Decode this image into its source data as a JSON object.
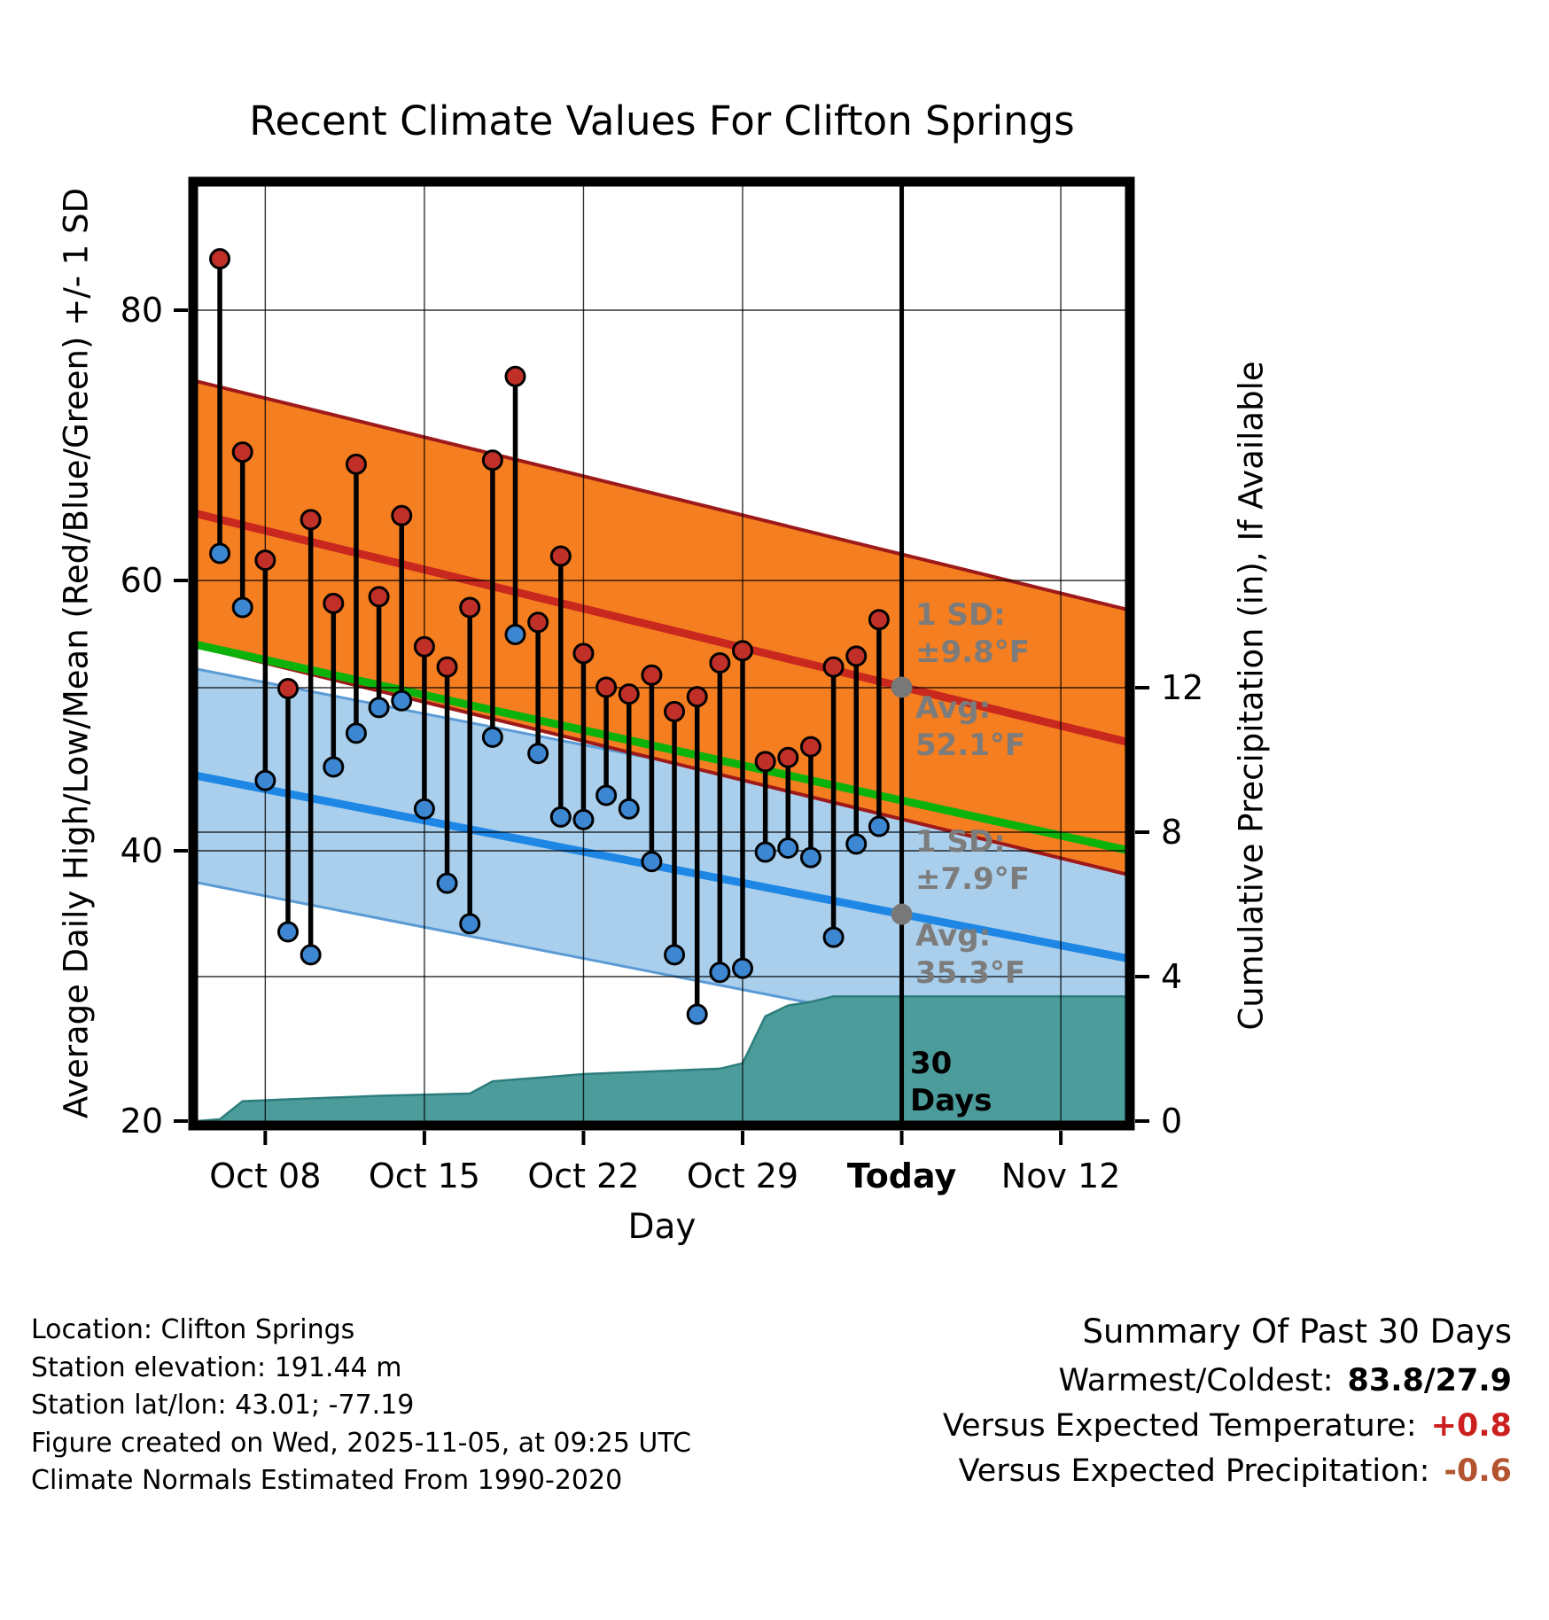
{
  "title": "Recent Climate Values For Clifton Springs",
  "annotations": {
    "high_sd": "1 SD:\n±9.8°F",
    "avg_high": "Avg:\n52.1°F",
    "low_sd": "1 SD:\n±7.9°F",
    "avg_low": "Avg:\n35.3°F",
    "period": "30\nDays"
  },
  "footer": {
    "location": "Location: Clifton Springs",
    "elevation": "Station elevation: 191.44 m",
    "latlon": "Station lat/lon: 43.01; -77.19",
    "created": "Figure created on Wed, 2025-11-05, at 09:25 UTC",
    "normals": "Climate Normals Estimated From 1990-2020"
  },
  "summary": {
    "heading": "Summary Of Past 30 Days",
    "warmest_label": "Warmest/Coldest:",
    "warmest_value": "83.8/27.9",
    "warmest_color": "#000000",
    "vs_temp_label": "Versus Expected Temperature:",
    "vs_temp_value": "+0.8",
    "vs_temp_color": "#CC2020",
    "vs_precip_label": "Versus Expected Precipitation:",
    "vs_precip_value": "-0.6",
    "vs_precip_color": "#B4532F"
  },
  "chart_data": {
    "type": "line",
    "subtype": "daily high/low stems with climatology bands and cumulative precipitation area",
    "title": "Recent Climate Values For Clifton Springs",
    "xlabel": "Day",
    "ylabel_left": "Average Daily High/Low/Mean (Red/Blue/Green) +/- 1 SD",
    "ylabel_right": "Cumulative Precipitation (in), If Available",
    "ylim_left": [
      20,
      87.5
    ],
    "ylim_right": [
      0,
      26
    ],
    "yticks_left": [
      20,
      40,
      60,
      80
    ],
    "yticks_right": [
      0,
      4,
      8,
      12
    ],
    "grid": true,
    "x_ticks": [
      {
        "label": "Oct 08",
        "d": 3,
        "bold": false
      },
      {
        "label": "Oct 15",
        "d": 10,
        "bold": false
      },
      {
        "label": "Oct 22",
        "d": 17,
        "bold": false
      },
      {
        "label": "Oct 29",
        "d": 24,
        "bold": false
      },
      {
        "label": "Today",
        "d": 31,
        "bold": true
      },
      {
        "label": "Nov 12",
        "d": 38,
        "bold": false
      }
    ],
    "days": [
      "Oct 06",
      "Oct 07",
      "Oct 08",
      "Oct 09",
      "Oct 10",
      "Oct 11",
      "Oct 12",
      "Oct 13",
      "Oct 14",
      "Oct 15",
      "Oct 16",
      "Oct 17",
      "Oct 18",
      "Oct 19",
      "Oct 20",
      "Oct 21",
      "Oct 22",
      "Oct 23",
      "Oct 24",
      "Oct 25",
      "Oct 26",
      "Oct 27",
      "Oct 28",
      "Oct 29",
      "Oct 30",
      "Oct 31",
      "Nov 01",
      "Nov 02",
      "Nov 03",
      "Nov 04"
    ],
    "daily_high": [
      83.8,
      69.5,
      61.5,
      52.0,
      64.5,
      58.3,
      68.6,
      58.8,
      64.8,
      55.1,
      53.6,
      58.0,
      68.9,
      75.1,
      56.9,
      61.8,
      54.6,
      52.1,
      51.6,
      53.0,
      50.3,
      51.4,
      53.9,
      54.8,
      46.6,
      46.9,
      47.7,
      53.6,
      54.4,
      57.1
    ],
    "daily_low": [
      62.0,
      58.0,
      45.2,
      34.0,
      32.3,
      46.2,
      48.7,
      50.6,
      51.1,
      43.1,
      37.6,
      34.6,
      48.4,
      56.0,
      47.2,
      42.5,
      42.3,
      44.1,
      43.1,
      39.2,
      32.3,
      27.9,
      31.0,
      31.3,
      39.9,
      40.2,
      39.5,
      33.6,
      40.5,
      41.8
    ],
    "climatology": {
      "note": "linear decline across plot; values given at left and right plot edges",
      "avg_high": {
        "left_edge": 65.0,
        "right_edge": 48.0,
        "sd": 9.8
      },
      "avg_low": {
        "left_edge": 45.6,
        "right_edge": 32.0,
        "sd": 7.9
      }
    },
    "today": {
      "label": "Today",
      "d": 31,
      "avg_high": 52.1,
      "high_sd": 9.8,
      "avg_low": 35.3,
      "low_sd": 7.9
    },
    "precip_cumulative": {
      "points": [
        [
          0,
          0
        ],
        [
          1,
          0.05
        ],
        [
          2,
          0.55
        ],
        [
          4,
          0.6
        ],
        [
          6,
          0.65
        ],
        [
          8,
          0.7
        ],
        [
          10,
          0.73
        ],
        [
          12,
          0.76
        ],
        [
          13,
          1.1
        ],
        [
          14,
          1.15
        ],
        [
          16,
          1.25
        ],
        [
          17,
          1.3
        ],
        [
          19,
          1.35
        ],
        [
          21,
          1.4
        ],
        [
          23,
          1.45
        ],
        [
          24,
          1.6
        ],
        [
          25,
          2.9
        ],
        [
          26,
          3.2
        ],
        [
          27,
          3.3
        ],
        [
          28,
          3.45
        ],
        [
          41.1,
          3.45
        ]
      ],
      "total_in": 3.45
    },
    "colors": {
      "high_band": "#F57E20",
      "high_band_edge": "#9E1A1A",
      "high_line": "#C8281E",
      "low_band": "#A9CFEC",
      "low_band_edge": "#5B9BD5",
      "low_line": "#1E87E5",
      "mean_line": "#0CB20C",
      "precip_fill": "#4D9C9C",
      "precip_edge": "#2E7D7D",
      "dot_high": "#C03028",
      "dot_low": "#3C86D2",
      "stem": "#000000",
      "marker_gray": "#787878",
      "grid": "#000000"
    }
  }
}
